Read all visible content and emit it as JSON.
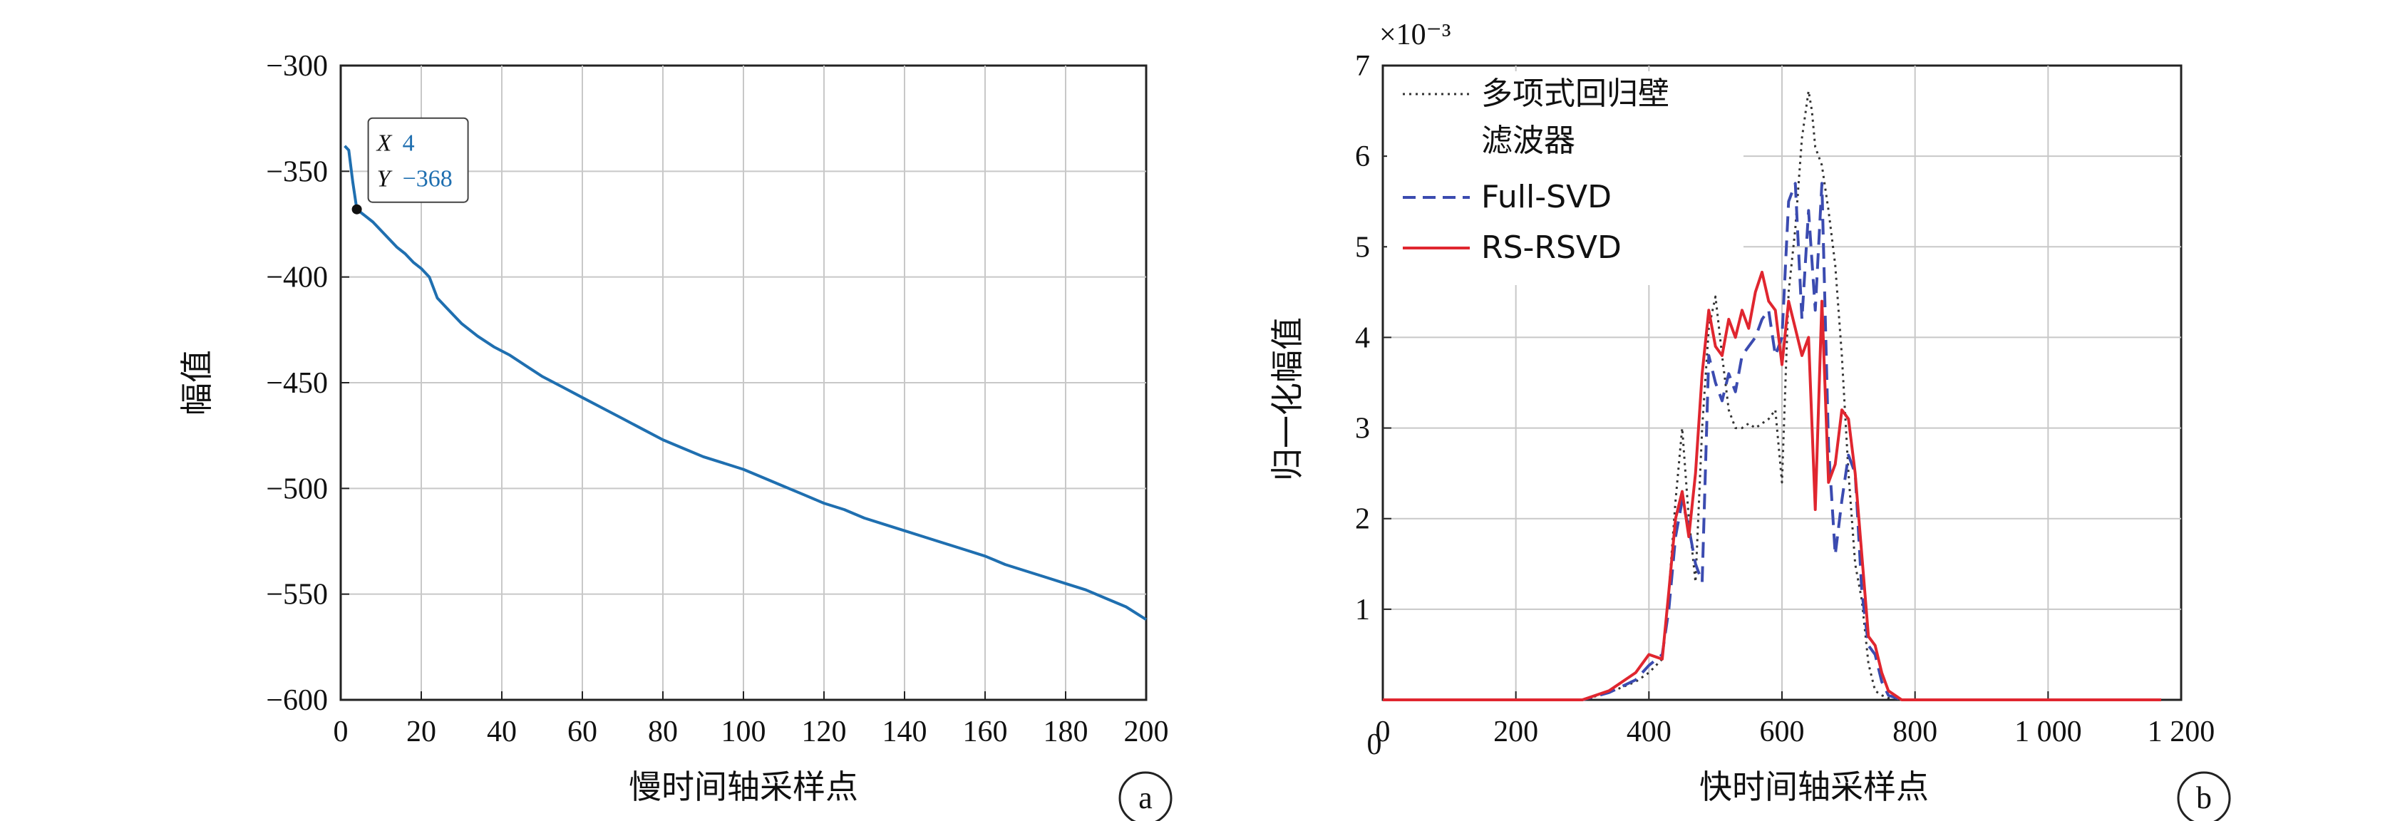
{
  "chart_data": [
    {
      "type": "line",
      "panel_label": "a",
      "xlabel": "慢时间轴采样点",
      "ylabel": "幅值",
      "xlim": [
        0,
        200
      ],
      "ylim": [
        -600,
        -300
      ],
      "xticks": [
        0,
        20,
        40,
        60,
        80,
        100,
        120,
        140,
        160,
        180,
        200
      ],
      "yticks": [
        -300,
        -350,
        -400,
        -450,
        -500,
        -550,
        -600
      ],
      "xtick_labels": [
        "0",
        "20",
        "40",
        "60",
        "80",
        "100",
        "120",
        "140",
        "160",
        "180",
        "200"
      ],
      "ytick_labels": [
        "−300",
        "−350",
        "−400",
        "−450",
        "−500",
        "−550",
        "−600"
      ],
      "grid": true,
      "color": "#1f6fb0",
      "datatip": {
        "x": 4,
        "y": -368,
        "x_text": "X",
        "y_text": "Y",
        "x_value": "4",
        "y_value": "−368"
      },
      "series": [
        {
          "x": [
            1,
            2,
            3,
            4,
            6,
            8,
            10,
            12,
            14,
            16,
            18,
            20,
            22,
            24,
            26,
            28,
            30,
            34,
            38,
            42,
            46,
            50,
            55,
            60,
            65,
            70,
            75,
            80,
            85,
            90,
            95,
            100,
            105,
            110,
            115,
            120,
            125,
            130,
            135,
            140,
            145,
            150,
            155,
            160,
            165,
            170,
            175,
            180,
            185,
            190,
            195,
            200
          ],
          "y": [
            -338,
            -340,
            -355,
            -368,
            -371,
            -374,
            -378,
            -382,
            -386,
            -389,
            -393,
            -396,
            -400,
            -410,
            -414,
            -418,
            -422,
            -428,
            -433,
            -437,
            -442,
            -447,
            -452,
            -457,
            -462,
            -467,
            -472,
            -477,
            -481,
            -485,
            -488,
            -491,
            -495,
            -499,
            -503,
            -507,
            -510,
            -514,
            -517,
            -520,
            -523,
            -526,
            -529,
            -532,
            -536,
            -539,
            -542,
            -545,
            -548,
            -552,
            -556,
            -562
          ]
        }
      ]
    },
    {
      "type": "line",
      "panel_label": "b",
      "xlabel": "快时间轴采样点",
      "ylabel": "归一化幅值",
      "scale_note": "×10⁻³",
      "xlim": [
        0,
        1200
      ],
      "ylim": [
        0,
        7
      ],
      "xticks": [
        0,
        200,
        400,
        600,
        800,
        1000,
        1200
      ],
      "yticks": [
        1,
        2,
        3,
        4,
        5,
        6,
        7
      ],
      "xtick_labels": [
        "0",
        "200",
        "400",
        "600",
        "800",
        "1 000",
        "1 200"
      ],
      "ytick_labels": [
        "1",
        "2",
        "3",
        "4",
        "5",
        "6",
        "7"
      ],
      "grid": true,
      "legend_position": "top-left",
      "series": [
        {
          "name": "多项式回归壁滤波器",
          "legend_lines": [
            "多项式回归壁",
            "滤波器"
          ],
          "color": "#333333",
          "style": "dotted",
          "x": [
            0,
            300,
            340,
            380,
            400,
            420,
            430,
            440,
            450,
            460,
            470,
            480,
            490,
            500,
            510,
            520,
            530,
            540,
            550,
            560,
            570,
            580,
            590,
            600,
            610,
            620,
            630,
            640,
            645,
            650,
            660,
            670,
            680,
            690,
            700,
            710,
            720,
            730,
            740,
            750,
            760,
            780,
            800,
            1170
          ],
          "y": [
            0,
            0,
            0.08,
            0.2,
            0.3,
            0.45,
            1.2,
            2.2,
            3.0,
            2.0,
            1.3,
            3.0,
            4.1,
            4.45,
            3.8,
            3.2,
            3.0,
            3.0,
            3.05,
            3.0,
            3.05,
            3.1,
            3.2,
            2.4,
            4.5,
            5.2,
            6.2,
            6.72,
            6.5,
            6.1,
            5.9,
            5.4,
            4.8,
            3.8,
            2.5,
            1.5,
            1.1,
            0.4,
            0.1,
            0.05,
            0.02,
            0,
            0,
            0
          ]
        },
        {
          "name": "Full-SVD",
          "color": "#3b4bb0",
          "style": "dashed",
          "x": [
            0,
            300,
            340,
            380,
            400,
            420,
            430,
            440,
            450,
            460,
            470,
            480,
            490,
            500,
            510,
            520,
            530,
            540,
            550,
            560,
            570,
            580,
            590,
            600,
            610,
            620,
            630,
            640,
            650,
            660,
            670,
            680,
            690,
            700,
            710,
            720,
            730,
            740,
            750,
            760,
            780,
            800,
            1170
          ],
          "y": [
            0,
            0,
            0.08,
            0.22,
            0.38,
            0.5,
            1.0,
            1.8,
            2.2,
            1.9,
            1.5,
            1.3,
            3.8,
            3.5,
            3.3,
            3.6,
            3.4,
            3.8,
            3.9,
            4.0,
            4.2,
            4.3,
            3.8,
            4.0,
            5.5,
            5.7,
            4.2,
            5.4,
            4.3,
            5.7,
            2.8,
            1.6,
            2.2,
            2.7,
            2.5,
            1.2,
            0.6,
            0.5,
            0.2,
            0.05,
            0,
            0,
            0
          ]
        },
        {
          "name": "RS-RSVD",
          "color": "#e0262f",
          "style": "solid",
          "x": [
            0,
            300,
            340,
            380,
            400,
            420,
            430,
            440,
            450,
            460,
            470,
            480,
            490,
            500,
            510,
            520,
            530,
            540,
            550,
            560,
            570,
            580,
            590,
            600,
            610,
            620,
            630,
            640,
            650,
            660,
            670,
            680,
            690,
            700,
            710,
            720,
            730,
            740,
            750,
            760,
            780,
            800,
            1170
          ],
          "y": [
            0,
            0,
            0.1,
            0.3,
            0.5,
            0.45,
            1.2,
            2.0,
            2.3,
            1.8,
            2.5,
            3.6,
            4.3,
            3.9,
            3.8,
            4.2,
            4.0,
            4.3,
            4.1,
            4.5,
            4.72,
            4.4,
            4.3,
            3.7,
            4.4,
            4.1,
            3.8,
            4.0,
            2.1,
            4.4,
            2.4,
            2.6,
            3.2,
            3.1,
            2.5,
            1.6,
            0.7,
            0.6,
            0.3,
            0.1,
            0,
            0,
            0
          ]
        }
      ]
    }
  ]
}
